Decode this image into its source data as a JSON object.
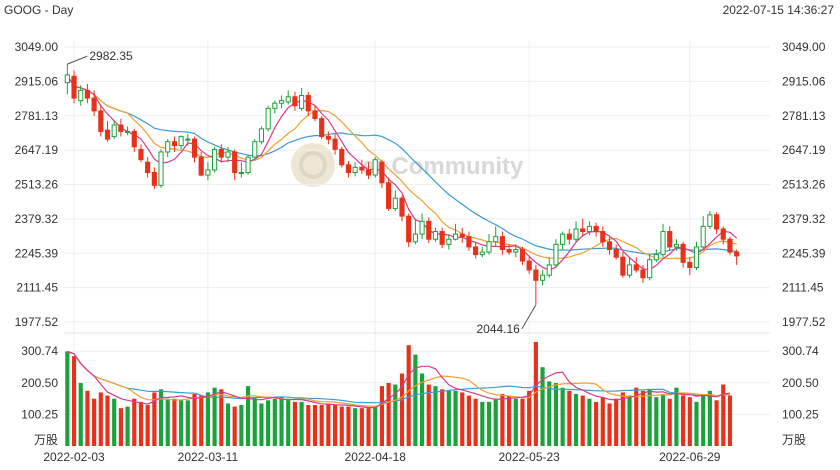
{
  "header": {
    "title": "GOOG - Day",
    "timestamp": "2022-07-15 14:36:27"
  },
  "watermark": {
    "text": "er Community"
  },
  "chart_data": [
    {
      "type": "candlestick",
      "price_ticks": [
        "3049.00",
        "2915.06",
        "2781.13",
        "2647.19",
        "2513.26",
        "2379.32",
        "2245.39",
        "2111.45",
        "1977.52"
      ],
      "ylim": [
        1977.52,
        3049.0
      ],
      "x_labels": [
        "2022-02-03",
        "2022-03-11",
        "2022-04-18",
        "2022-05-23",
        "2022-06-29"
      ],
      "x_label_index": [
        1,
        21,
        46,
        69,
        93
      ],
      "annotations": [
        {
          "label": "2982.35",
          "index": 0,
          "value": 2982.35
        },
        {
          "label": "2044.16",
          "index": 70,
          "value": 2044.16
        }
      ],
      "colors": {
        "up": "#19a33a",
        "down": "#e8311a",
        "ma5": "#d83a8c",
        "ma10": "#f0a030",
        "ma20": "#3c9bd6"
      },
      "candles": [
        [
          2910,
          2940,
          2982.35,
          2865
        ],
        [
          2935,
          2850,
          2958,
          2830
        ],
        [
          2840,
          2880,
          2900,
          2820
        ],
        [
          2880,
          2850,
          2905,
          2830
        ],
        [
          2850,
          2800,
          2880,
          2780
        ],
        [
          2800,
          2720,
          2825,
          2700
        ],
        [
          2725,
          2690,
          2760,
          2680
        ],
        [
          2700,
          2745,
          2760,
          2690
        ],
        [
          2745,
          2720,
          2770,
          2700
        ],
        [
          2720,
          2720,
          2740,
          2705
        ],
        [
          2720,
          2660,
          2730,
          2640
        ],
        [
          2650,
          2610,
          2670,
          2600
        ],
        [
          2600,
          2560,
          2620,
          2540
        ],
        [
          2560,
          2510,
          2580,
          2495
        ],
        [
          2510,
          2640,
          2650,
          2500
        ],
        [
          2640,
          2680,
          2690,
          2620
        ],
        [
          2680,
          2665,
          2700,
          2640
        ],
        [
          2665,
          2700,
          2705,
          2650
        ],
        [
          2690,
          2690,
          2710,
          2665
        ],
        [
          2690,
          2620,
          2700,
          2600
        ],
        [
          2620,
          2550,
          2640,
          2545
        ],
        [
          2550,
          2570,
          2600,
          2530
        ],
        [
          2570,
          2650,
          2660,
          2560
        ],
        [
          2650,
          2620,
          2670,
          2600
        ],
        [
          2620,
          2640,
          2660,
          2600
        ],
        [
          2640,
          2560,
          2650,
          2530
        ],
        [
          2560,
          2560,
          2600,
          2540
        ],
        [
          2560,
          2620,
          2630,
          2550
        ],
        [
          2620,
          2680,
          2690,
          2615
        ],
        [
          2680,
          2730,
          2740,
          2670
        ],
        [
          2730,
          2810,
          2820,
          2720
        ],
        [
          2810,
          2830,
          2840,
          2790
        ],
        [
          2830,
          2840,
          2860,
          2810
        ],
        [
          2835,
          2855,
          2880,
          2825
        ],
        [
          2855,
          2820,
          2875,
          2800
        ],
        [
          2810,
          2860,
          2890,
          2800
        ],
        [
          2860,
          2800,
          2875,
          2780
        ],
        [
          2800,
          2770,
          2820,
          2760
        ],
        [
          2770,
          2700,
          2780,
          2690
        ],
        [
          2700,
          2690,
          2720,
          2670
        ],
        [
          2690,
          2650,
          2710,
          2630
        ],
        [
          2650,
          2590,
          2660,
          2580
        ],
        [
          2590,
          2560,
          2605,
          2540
        ],
        [
          2560,
          2580,
          2600,
          2545
        ],
        [
          2580,
          2570,
          2610,
          2555
        ],
        [
          2570,
          2550,
          2600,
          2535
        ],
        [
          2550,
          2610,
          2620,
          2540
        ],
        [
          2600,
          2520,
          2610,
          2500
        ],
        [
          2520,
          2420,
          2540,
          2410
        ],
        [
          2420,
          2460,
          2490,
          2410
        ],
        [
          2460,
          2390,
          2470,
          2370
        ],
        [
          2390,
          2290,
          2400,
          2270
        ],
        [
          2290,
          2320,
          2380,
          2280
        ],
        [
          2320,
          2370,
          2400,
          2300
        ],
        [
          2370,
          2300,
          2385,
          2285
        ],
        [
          2300,
          2330,
          2345,
          2290
        ],
        [
          2330,
          2280,
          2345,
          2265
        ],
        [
          2280,
          2300,
          2320,
          2260
        ],
        [
          2300,
          2320,
          2360,
          2295
        ],
        [
          2320,
          2310,
          2345,
          2285
        ],
        [
          2310,
          2270,
          2330,
          2255
        ],
        [
          2270,
          2240,
          2290,
          2225
        ],
        [
          2240,
          2250,
          2270,
          2230
        ],
        [
          2250,
          2290,
          2320,
          2240
        ],
        [
          2290,
          2310,
          2350,
          2270
        ],
        [
          2310,
          2260,
          2330,
          2240
        ],
        [
          2260,
          2250,
          2280,
          2240
        ],
        [
          2250,
          2260,
          2280,
          2230
        ],
        [
          2260,
          2215,
          2270,
          2200
        ],
        [
          2215,
          2180,
          2230,
          2165
        ],
        [
          2180,
          2140,
          2200,
          2044.16
        ],
        [
          2140,
          2160,
          2180,
          2120
        ],
        [
          2160,
          2200,
          2230,
          2150
        ],
        [
          2200,
          2280,
          2300,
          2190
        ],
        [
          2280,
          2320,
          2330,
          2260
        ],
        [
          2320,
          2300,
          2340,
          2280
        ],
        [
          2300,
          2340,
          2370,
          2290
        ],
        [
          2340,
          2330,
          2380,
          2310
        ],
        [
          2330,
          2350,
          2370,
          2315
        ],
        [
          2350,
          2330,
          2365,
          2310
        ],
        [
          2330,
          2290,
          2350,
          2270
        ],
        [
          2290,
          2260,
          2310,
          2240
        ],
        [
          2260,
          2230,
          2280,
          2220
        ],
        [
          2230,
          2160,
          2250,
          2150
        ],
        [
          2160,
          2200,
          2230,
          2150
        ],
        [
          2200,
          2180,
          2230,
          2170
        ],
        [
          2180,
          2150,
          2200,
          2130
        ],
        [
          2150,
          2220,
          2240,
          2140
        ],
        [
          2220,
          2240,
          2260,
          2210
        ],
        [
          2240,
          2330,
          2360,
          2230
        ],
        [
          2330,
          2270,
          2350,
          2255
        ],
        [
          2270,
          2280,
          2300,
          2255
        ],
        [
          2280,
          2210,
          2290,
          2190
        ],
        [
          2210,
          2190,
          2230,
          2160
        ],
        [
          2190,
          2270,
          2290,
          2180
        ],
        [
          2270,
          2350,
          2390,
          2260
        ],
        [
          2350,
          2395,
          2410,
          2340
        ],
        [
          2395,
          2340,
          2405,
          2320
        ],
        [
          2340,
          2300,
          2350,
          2280
        ],
        [
          2300,
          2250,
          2310,
          2240
        ],
        [
          2250,
          2235,
          2260,
          2200
        ]
      ],
      "volume_ticks": [
        "300.74",
        "200.50",
        "100.25"
      ],
      "volume_unit": "万股",
      "volume_max": 330,
      "volume": [
        300,
        285,
        200,
        175,
        150,
        170,
        160,
        150,
        120,
        125,
        150,
        140,
        130,
        170,
        180,
        150,
        150,
        145,
        145,
        165,
        160,
        170,
        185,
        180,
        135,
        125,
        130,
        190,
        155,
        135,
        145,
        150,
        155,
        150,
        140,
        140,
        130,
        130,
        130,
        135,
        130,
        125,
        125,
        120,
        120,
        120,
        125,
        190,
        200,
        195,
        230,
        320,
        290,
        230,
        195,
        190,
        180,
        175,
        175,
        170,
        160,
        150,
        140,
        140,
        150,
        165,
        160,
        150,
        150,
        175,
        330,
        250,
        205,
        200,
        185,
        175,
        165,
        160,
        150,
        140,
        155,
        135,
        150,
        170,
        160,
        185,
        175,
        180,
        155,
        165,
        150,
        185,
        160,
        155,
        140,
        165,
        175,
        145,
        195,
        160
      ]
    }
  ]
}
